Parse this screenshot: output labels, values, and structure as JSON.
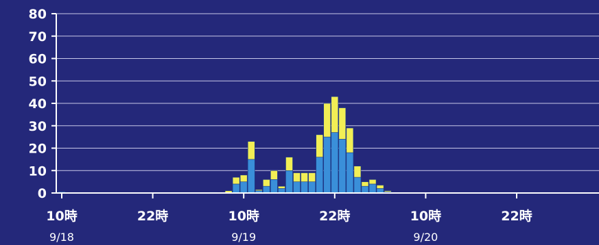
{
  "chart_data": {
    "type": "bar",
    "stacked": true,
    "title": "",
    "xlabel": "",
    "ylabel": "",
    "ylim": [
      0,
      80
    ],
    "y_ticks": [
      0,
      10,
      20,
      30,
      40,
      50,
      60,
      70,
      80
    ],
    "grid": true,
    "x_ticks": [
      {
        "hour": 0,
        "label": "10時",
        "date": "9/18"
      },
      {
        "hour": 12,
        "label": "22時",
        "date": ""
      },
      {
        "hour": 24,
        "label": "10時",
        "date": "9/19"
      },
      {
        "hour": 36,
        "label": "22時",
        "date": ""
      },
      {
        "hour": 48,
        "label": "10時",
        "date": "9/20"
      },
      {
        "hour": 60,
        "label": "22時",
        "date": ""
      },
      {
        "hour": 72,
        "label": "",
        "date": ""
      }
    ],
    "x": [
      0,
      1,
      2,
      3,
      4,
      5,
      6,
      7,
      8,
      9,
      10,
      11,
      12,
      13,
      14,
      15,
      16,
      17,
      18,
      19,
      20,
      21,
      22,
      23,
      24,
      25,
      26,
      27,
      28,
      29,
      30,
      31,
      32,
      33,
      34,
      35,
      36,
      37,
      38,
      39,
      40,
      41,
      42,
      43,
      44,
      45,
      46,
      47,
      48,
      49,
      50,
      51,
      52,
      53,
      54,
      55,
      56,
      57,
      58,
      59,
      60,
      61,
      62,
      63,
      64,
      65,
      66,
      67,
      68,
      69,
      70,
      71
    ],
    "series": [
      {
        "name": "",
        "color": "#3a8fd9",
        "values": [
          0.5,
          0,
          0,
          0,
          0,
          0,
          0,
          0,
          0,
          0,
          0,
          0,
          0,
          0,
          0,
          0,
          0,
          0,
          0,
          0,
          0.3,
          0,
          0,
          4,
          5,
          15,
          1,
          3,
          6,
          2,
          10,
          5,
          5,
          5,
          16,
          25,
          27,
          24,
          18,
          7,
          3,
          4,
          2,
          0.5,
          0,
          0,
          0,
          0,
          0,
          0,
          0.3,
          0,
          0,
          0,
          0,
          0,
          0,
          0,
          0,
          0,
          0,
          0,
          0,
          0,
          0,
          0,
          0,
          0,
          0,
          0,
          0,
          0
        ]
      },
      {
        "name": "",
        "color": "#f2ee55",
        "values": [
          0,
          0,
          0,
          0,
          0,
          0,
          0,
          0,
          0,
          0,
          0,
          0,
          0,
          0,
          0,
          0,
          0,
          0,
          0,
          0,
          0,
          0,
          1,
          3,
          3,
          8,
          0.5,
          3,
          4,
          1,
          6,
          4,
          4,
          4,
          10,
          15,
          16,
          14,
          11,
          5,
          2,
          2,
          1.5,
          0.5,
          0,
          0,
          0,
          0,
          0,
          0,
          0,
          0,
          0,
          0,
          0,
          0,
          0,
          0,
          0,
          0,
          0,
          0,
          0,
          0,
          0,
          0,
          0,
          0,
          0,
          0,
          0,
          0
        ]
      }
    ]
  }
}
